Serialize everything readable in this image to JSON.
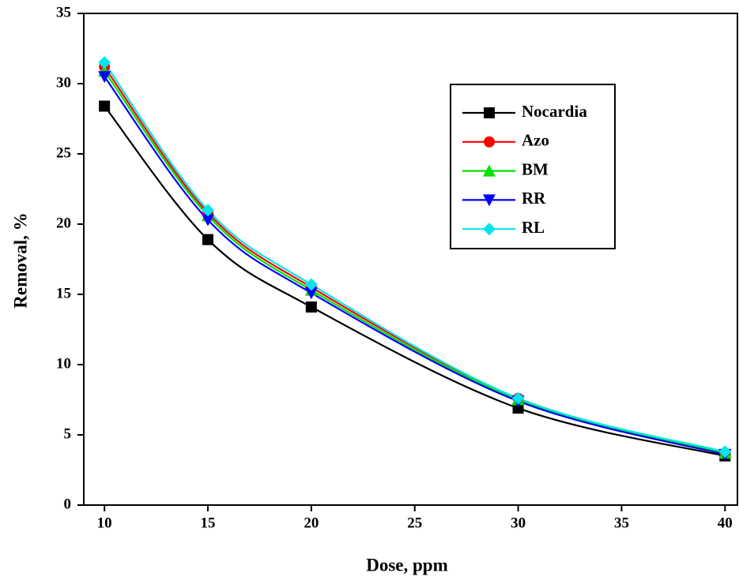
{
  "chart_data": {
    "type": "line",
    "x_label": "Dose, ppm",
    "y_label": "Removal, %",
    "x": [
      10,
      15,
      20,
      30,
      40
    ],
    "series": [
      {
        "name": "Nocardia",
        "color": "#000000",
        "marker": "square",
        "values": [
          28.4,
          18.9,
          14.1,
          6.9,
          3.5
        ]
      },
      {
        "name": "Azo",
        "color": "#ff0000",
        "marker": "circle",
        "values": [
          31.2,
          20.8,
          15.5,
          7.6,
          3.7
        ]
      },
      {
        "name": "BM",
        "color": "#00e000",
        "marker": "triangle-up",
        "values": [
          30.9,
          20.6,
          15.3,
          7.5,
          3.7
        ]
      },
      {
        "name": "RR",
        "color": "#0000ff",
        "marker": "triangle-down",
        "values": [
          30.5,
          20.3,
          15.1,
          7.4,
          3.6
        ]
      },
      {
        "name": "RL",
        "color": "#00e5ee",
        "marker": "diamond",
        "values": [
          31.5,
          21.0,
          15.7,
          7.6,
          3.8
        ]
      }
    ],
    "xlim": [
      9,
      40.6
    ],
    "ylim": [
      0,
      35
    ],
    "xticks": [
      10,
      15,
      20,
      25,
      30,
      35,
      40
    ],
    "yticks": [
      0,
      5,
      10,
      15,
      20,
      25,
      30,
      35
    ],
    "grid": false,
    "legend": "upper right"
  }
}
